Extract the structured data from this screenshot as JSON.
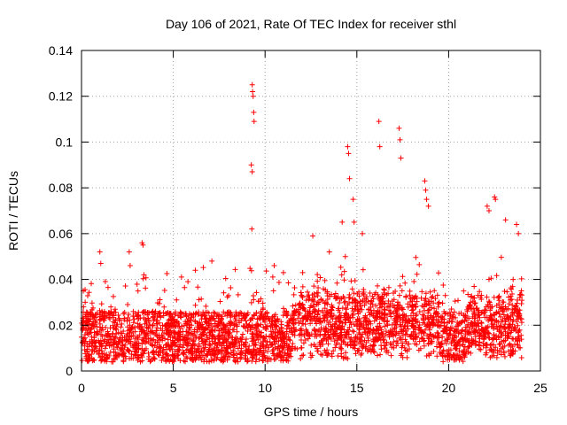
{
  "chart_data": {
    "type": "scatter",
    "title": "Day 106 of 2021, Rate Of TEC Index for receiver sthl",
    "xlabel": "GPS time / hours",
    "ylabel": "ROTI / TECUs",
    "xlim": [
      0,
      25
    ],
    "ylim": [
      0,
      0.14
    ],
    "xticks": [
      0,
      5,
      10,
      15,
      20,
      25
    ],
    "xtick_labels": [
      "0",
      "5",
      "10",
      "15",
      "20",
      "25"
    ],
    "yticks": [
      0,
      0.02,
      0.04,
      0.06,
      0.08,
      0.1,
      0.12,
      0.14
    ],
    "ytick_labels": [
      "0",
      "0.02",
      "0.04",
      "0.06",
      "0.08",
      "0.1",
      "0.12",
      "0.14"
    ],
    "grid": true,
    "marker": "+",
    "color": "#ff0000",
    "series": [
      {
        "name": "ROTI",
        "x": [
          0.1,
          0.2,
          0.5,
          1.0,
          1.05,
          1.6,
          2.6,
          2.65,
          3.3,
          3.35,
          3.4,
          6.2,
          7.1,
          9.3,
          9.32,
          9.35,
          9.38,
          9.4,
          9.25,
          9.3,
          9.28,
          12.6,
          14.2,
          14.5,
          14.55,
          14.6,
          14.8,
          14.85,
          16.2,
          16.25,
          17.3,
          17.35,
          17.4,
          18.7,
          18.75,
          18.8,
          18.9,
          22.1,
          22.2,
          22.5,
          22.55,
          23.7,
          23.8,
          23.1,
          13.5,
          15.3,
          10.5,
          11.0
        ],
        "y": [
          0.035,
          0.03,
          0.025,
          0.052,
          0.047,
          0.028,
          0.052,
          0.046,
          0.056,
          0.055,
          0.042,
          0.044,
          0.048,
          0.125,
          0.122,
          0.12,
          0.113,
          0.109,
          0.09,
          0.087,
          0.062,
          0.059,
          0.065,
          0.098,
          0.095,
          0.084,
          0.075,
          0.065,
          0.109,
          0.098,
          0.106,
          0.101,
          0.093,
          0.083,
          0.079,
          0.075,
          0.072,
          0.072,
          0.07,
          0.076,
          0.075,
          0.064,
          0.06,
          0.066,
          0.052,
          0.06,
          0.046,
          0.043
        ]
      }
    ]
  }
}
